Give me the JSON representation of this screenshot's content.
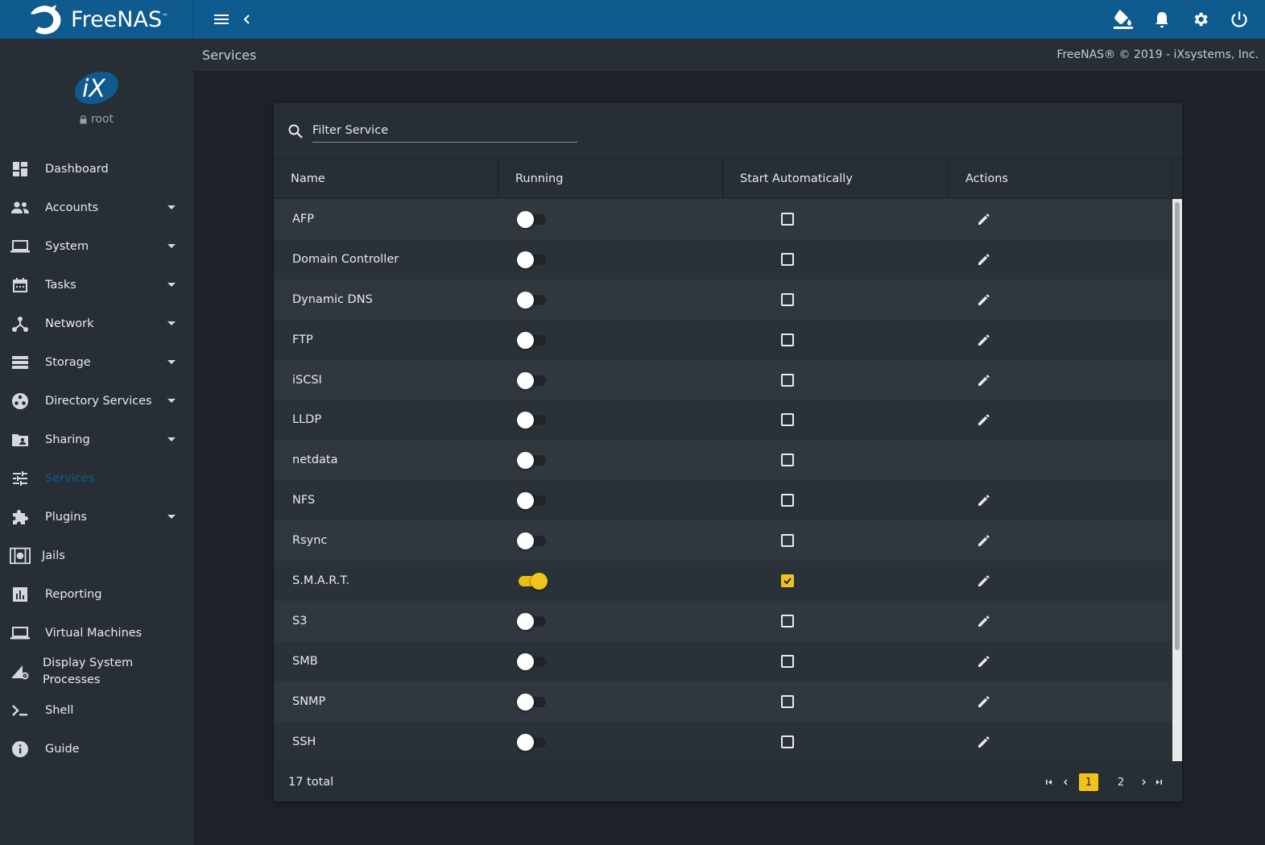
{
  "topbar": {
    "brand": "FreeNAS",
    "brand_tm": "™"
  },
  "sidebar": {
    "user": "root",
    "items": [
      {
        "label": "Dashboard",
        "icon": "dashboard-icon",
        "has_caret": false
      },
      {
        "label": "Accounts",
        "icon": "accounts-icon",
        "has_caret": true
      },
      {
        "label": "System",
        "icon": "laptop-icon",
        "has_caret": true
      },
      {
        "label": "Tasks",
        "icon": "calendar-icon",
        "has_caret": true
      },
      {
        "label": "Network",
        "icon": "network-icon",
        "has_caret": true
      },
      {
        "label": "Storage",
        "icon": "storage-icon",
        "has_caret": true
      },
      {
        "label": "Directory Services",
        "icon": "directory-icon",
        "has_caret": true
      },
      {
        "label": "Sharing",
        "icon": "folder-share-icon",
        "has_caret": true
      },
      {
        "label": "Services",
        "icon": "tune-icon",
        "has_caret": false,
        "active": true
      },
      {
        "label": "Plugins",
        "icon": "puzzle-icon",
        "has_caret": true
      },
      {
        "label": "Jails",
        "icon": "jail-icon",
        "has_caret": false
      },
      {
        "label": "Reporting",
        "icon": "chart-icon",
        "has_caret": false
      },
      {
        "label": "Virtual Machines",
        "icon": "laptop-icon",
        "has_caret": false
      },
      {
        "label": "Display System Processes",
        "icon": "processes-icon",
        "has_caret": false
      },
      {
        "label": "Shell",
        "icon": "terminal-icon",
        "has_caret": false
      },
      {
        "label": "Guide",
        "icon": "info-icon",
        "has_caret": false
      }
    ]
  },
  "page": {
    "title": "Services",
    "copyright": "FreeNAS® © 2019 - iXsystems, Inc."
  },
  "filter": {
    "placeholder": "Filter Service"
  },
  "table": {
    "headers": [
      "Name",
      "Running",
      "Start Automatically",
      "Actions"
    ],
    "rows": [
      {
        "name": "AFP",
        "running": false,
        "auto": false,
        "editable": true
      },
      {
        "name": "Domain Controller",
        "running": false,
        "auto": false,
        "editable": true
      },
      {
        "name": "Dynamic DNS",
        "running": false,
        "auto": false,
        "editable": true
      },
      {
        "name": "FTP",
        "running": false,
        "auto": false,
        "editable": true
      },
      {
        "name": "iSCSI",
        "running": false,
        "auto": false,
        "editable": true
      },
      {
        "name": "LLDP",
        "running": false,
        "auto": false,
        "editable": true
      },
      {
        "name": "netdata",
        "running": false,
        "auto": false,
        "editable": false
      },
      {
        "name": "NFS",
        "running": false,
        "auto": false,
        "editable": true
      },
      {
        "name": "Rsync",
        "running": false,
        "auto": false,
        "editable": true
      },
      {
        "name": "S.M.A.R.T.",
        "running": true,
        "auto": true,
        "editable": true
      },
      {
        "name": "S3",
        "running": false,
        "auto": false,
        "editable": true
      },
      {
        "name": "SMB",
        "running": false,
        "auto": false,
        "editable": true
      },
      {
        "name": "SNMP",
        "running": false,
        "auto": false,
        "editable": true
      },
      {
        "name": "SSH",
        "running": false,
        "auto": false,
        "editable": true
      }
    ],
    "total": "17 total",
    "pages": [
      "1",
      "2"
    ],
    "current_page": "1"
  },
  "colors": {
    "topbar": "#0f5a8e",
    "accent": "#f0c419",
    "active_nav": "#0f5a8e"
  }
}
